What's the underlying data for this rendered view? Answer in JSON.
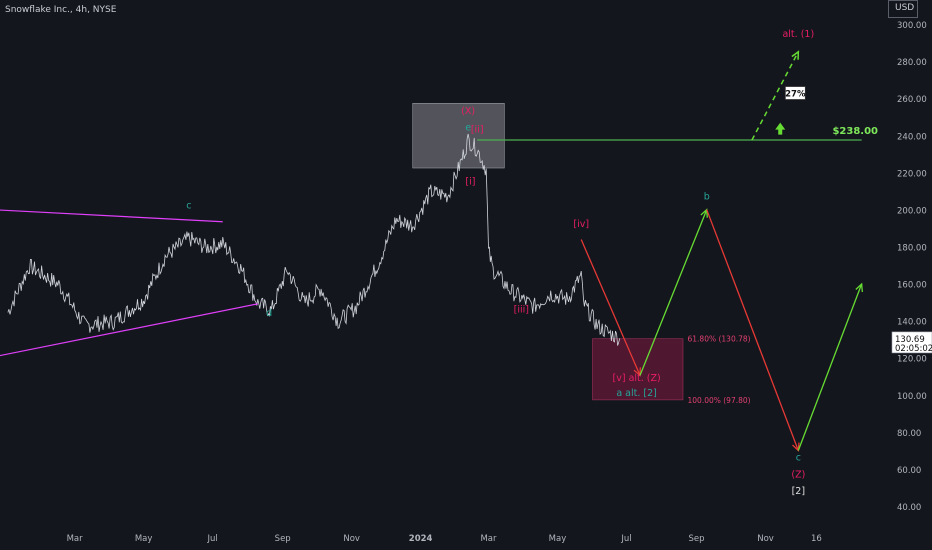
{
  "header": {
    "symbol": "Snowflake Inc., 4h, NYSE",
    "currency": "USD"
  },
  "colors": {
    "background": "#14161d",
    "price": "#d1d4dc",
    "resistance": "#4caf50",
    "up": "#66dd33",
    "down": "#e53935",
    "wave_magenta": "#e040fb",
    "wave_crimson": "#e91e63",
    "wave_teal": "#26a69a"
  },
  "chart_data": {
    "type": "line",
    "title": "",
    "xlabel": "",
    "ylabel": "USD",
    "ylim": [
      30,
      310
    ],
    "y_ticks": [
      40,
      60,
      80,
      100,
      120,
      140,
      160,
      180,
      200,
      220,
      240,
      260,
      280,
      300
    ],
    "x_ticks": [
      "Mar",
      "May",
      "Jul",
      "Sep",
      "Nov",
      "2024",
      "Mar",
      "May",
      "Jul",
      "Sep",
      "Nov",
      "16"
    ],
    "price_anchors": {
      "x": [
        "2023-01-01",
        "2023-01-20",
        "2023-02-15",
        "2023-03-10",
        "2023-04-05",
        "2023-05-01",
        "2023-05-20",
        "2023-06-10",
        "2023-06-25",
        "2023-07-10",
        "2023-07-25",
        "2023-08-10",
        "2023-08-22",
        "2023-09-05",
        "2023-09-20",
        "2023-10-05",
        "2023-10-20",
        "2023-11-05",
        "2023-11-25",
        "2023-12-10",
        "2023-12-25",
        "2024-01-10",
        "2024-01-25",
        "2024-02-05",
        "2024-02-12",
        "2024-02-20",
        "2024-02-28",
        "2024-03-01",
        "2024-03-05",
        "2024-03-20",
        "2024-04-10",
        "2024-04-25",
        "2024-05-10",
        "2024-05-22",
        "2024-05-24",
        "2024-06-05",
        "2024-06-15",
        "2024-06-25"
      ],
      "y": [
        145,
        170,
        160,
        138,
        140,
        152,
        175,
        185,
        180,
        182,
        170,
        150,
        146,
        168,
        150,
        158,
        140,
        148,
        172,
        195,
        192,
        210,
        208,
        225,
        238,
        233,
        222,
        178,
        168,
        157,
        148,
        155,
        152,
        165,
        150,
        138,
        134,
        131
      ]
    },
    "series": [
      {
        "type": "line",
        "points": [
          {
            "x": "2022-12-25",
            "y": 200.2
          },
          {
            "x": "2023-07-10",
            "y": 193.9
          }
        ]
      },
      {
        "type": "line",
        "points": [
          {
            "x": "2022-12-25",
            "y": 121.7
          },
          {
            "x": "2023-08-10",
            "y": 149.6
          }
        ]
      },
      {
        "type": "line",
        "points": [
          {
            "x": "2024-02-20",
            "y": 238.0
          },
          {
            "x": "2025-01-25",
            "y": 238.0
          }
        ],
        "label": "$238.00"
      },
      {
        "type": "line",
        "points": [
          {
            "x": "2024-05-22",
            "y": 184.3
          },
          {
            "x": "2024-07-13",
            "y": 111.0
          }
        ]
      },
      {
        "type": "line",
        "points": [
          {
            "x": "2024-07-13",
            "y": 111.0
          },
          {
            "x": "2024-09-10",
            "y": 200.4
          }
        ]
      },
      {
        "type": "line",
        "points": [
          {
            "x": "2024-09-10",
            "y": 200.4
          },
          {
            "x": "2024-11-30",
            "y": 70.5
          }
        ]
      },
      {
        "type": "line",
        "points": [
          {
            "x": "2024-11-30",
            "y": 70.5
          },
          {
            "x": "2025-01-25",
            "y": 160.3
          }
        ]
      },
      {
        "type": "line",
        "points": [
          {
            "x": "2024-10-20",
            "y": 238.0
          },
          {
            "x": "2024-11-30",
            "y": 285.6
          }
        ],
        "label": "alt. (1)"
      }
    ],
    "zones": [
      {
        "x_start": "2023-12-25",
        "x_end": "2024-03-15",
        "y_low": 222.9,
        "y_high": 257.8
      },
      {
        "x_start": "2024-06-01",
        "x_end": "2024-08-20",
        "y_low": 97.8,
        "y_high": 130.78
      }
    ],
    "fib_levels": [
      {
        "label": "61.80% (130.78)",
        "value": 130.78
      },
      {
        "label": "100.00% (97.80)",
        "value": 97.8
      }
    ],
    "annotations": [
      {
        "text": "c",
        "x": "2023-06-10",
        "y": 201,
        "color": "teal"
      },
      {
        "text": "d",
        "x": "2023-08-20",
        "y": 143,
        "color": "teal"
      },
      {
        "text": "(X)",
        "x": "2024-02-12",
        "y": 252,
        "color": "crimson"
      },
      {
        "text": "e",
        "x": "2024-02-12",
        "y": 243,
        "color": "teal"
      },
      {
        "text": "[ii]",
        "x": "2024-02-20",
        "y": 242,
        "color": "crimson"
      },
      {
        "text": "[i]",
        "x": "2024-02-14",
        "y": 214,
        "color": "crimson"
      },
      {
        "text": "[iv]",
        "x": "2024-05-22",
        "y": 191,
        "color": "crimson"
      },
      {
        "text": "[iii]",
        "x": "2024-03-30",
        "y": 145,
        "color": "crimson"
      },
      {
        "text": "[v] alt. (Z)",
        "x": "2024-07-10",
        "y": 108,
        "color": "crimson"
      },
      {
        "text": "a alt. [2]",
        "x": "2024-07-10",
        "y": 100,
        "color": "teal"
      },
      {
        "text": "b",
        "x": "2024-09-10",
        "y": 206,
        "color": "teal"
      },
      {
        "text": "c",
        "x": "2024-11-30",
        "y": 65,
        "color": "teal"
      },
      {
        "text": "(Z)",
        "x": "2024-11-30",
        "y": 56,
        "color": "crimson"
      },
      {
        "text": "[2]",
        "x": "2024-11-30",
        "y": 47,
        "color": "white"
      },
      {
        "text": "27%",
        "x": "2024-11-30",
        "y": 262,
        "color": "white"
      }
    ],
    "current_price": {
      "value": 130.69,
      "label": "130.69",
      "countdown": "02:05:02"
    }
  }
}
